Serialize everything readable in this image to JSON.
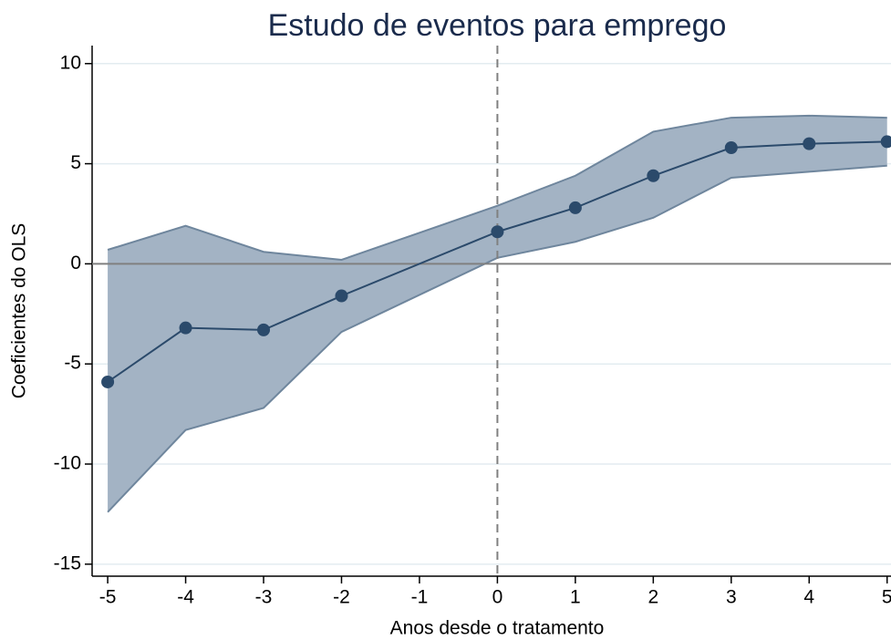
{
  "chart_data": {
    "type": "event-study",
    "title": "Estudo de eventos para emprego",
    "x_label": "Anos desde o tratamento",
    "y_label": "Coeficientes do OLS",
    "x": [
      -5,
      -4,
      -3,
      -2,
      0,
      1,
      2,
      3,
      4,
      5
    ],
    "values": [
      -5.9,
      -3.2,
      -3.3,
      -1.6,
      1.6,
      2.8,
      4.4,
      5.8,
      6.0,
      6.1
    ],
    "ci_upper": [
      0.7,
      1.9,
      0.6,
      0.2,
      2.9,
      4.4,
      6.6,
      7.3,
      7.4,
      7.3
    ],
    "ci_lower": [
      -12.4,
      -8.3,
      -7.2,
      -3.4,
      0.3,
      1.1,
      2.3,
      4.3,
      4.6,
      4.9
    ],
    "color": "#2b4a6b",
    "band_color": "#a3b3c4",
    "band_edge_color": "#6f869d",
    "xlim": [
      -5.2,
      5.05
    ],
    "ylim": [
      -15.6,
      10.9
    ],
    "xticks": [
      -5,
      -4,
      -3,
      -2,
      -1,
      0,
      1,
      2,
      3,
      4,
      5
    ],
    "yticks": [
      -15,
      -10,
      -5,
      0,
      5,
      10
    ],
    "reference_lines": {
      "x": 0,
      "y": 0
    },
    "grid": true
  }
}
